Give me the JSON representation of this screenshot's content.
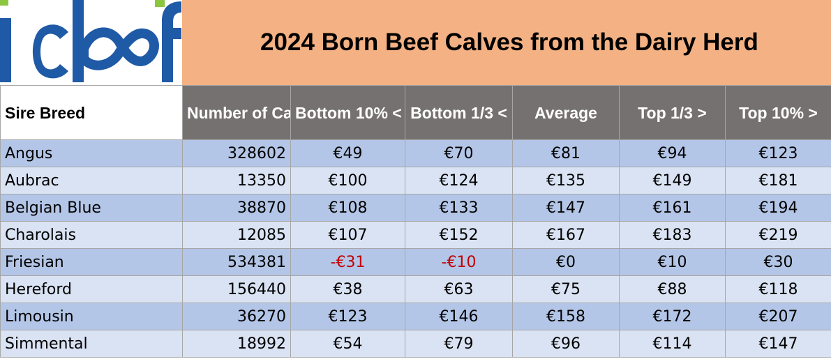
{
  "logo": {
    "text": "icbf",
    "colors": {
      "blue": "#1f5aa6",
      "green": "#8cc63f"
    }
  },
  "title": "2024 Born Beef Calves from the Dairy Herd",
  "colors": {
    "title_bg": "#f4b183",
    "header_bg": "#767171",
    "row_dark": "#b4c6e7",
    "row_light": "#dae3f3",
    "negative": "#c00000"
  },
  "columns": [
    "Sire Breed",
    "Number of Calves*",
    "Bottom 10% <",
    "Bottom 1/3 <",
    "Average",
    "Top 1/3 >",
    "Top 10% >"
  ],
  "rows": [
    {
      "breed": "Angus",
      "calves": "328602",
      "b10": "€49",
      "b33": "€70",
      "avg": "€81",
      "t33": "€94",
      "t10": "€123"
    },
    {
      "breed": "Aubrac",
      "calves": "13350",
      "b10": "€100",
      "b33": "€124",
      "avg": "€135",
      "t33": "€149",
      "t10": "€181"
    },
    {
      "breed": "Belgian Blue",
      "calves": "38870",
      "b10": "€108",
      "b33": "€133",
      "avg": "€147",
      "t33": "€161",
      "t10": "€194"
    },
    {
      "breed": "Charolais",
      "calves": "12085",
      "b10": "€107",
      "b33": "€152",
      "avg": "€167",
      "t33": "€183",
      "t10": "€219"
    },
    {
      "breed": "Friesian",
      "calves": "534381",
      "b10": "-€31",
      "b33": "-€10",
      "avg": "€0",
      "t33": "€10",
      "t10": "€30"
    },
    {
      "breed": "Hereford",
      "calves": "156440",
      "b10": "€38",
      "b33": "€63",
      "avg": "€75",
      "t33": "€88",
      "t10": "€118"
    },
    {
      "breed": "Limousin",
      "calves": "36270",
      "b10": "€123",
      "b33": "€146",
      "avg": "€158",
      "t33": "€172",
      "t10": "€207"
    },
    {
      "breed": "Simmental",
      "calves": "18992",
      "b10": "€54",
      "b33": "€79",
      "avg": "€96",
      "t33": "€114",
      "t10": "€147"
    }
  ]
}
